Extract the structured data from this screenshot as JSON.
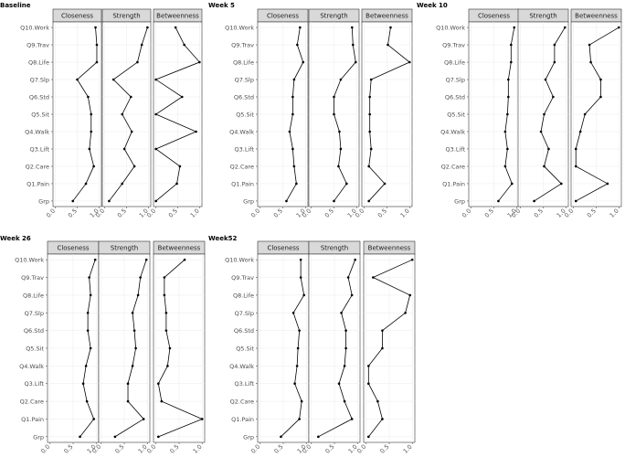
{
  "chart_data": [
    {
      "type": "line",
      "title": "Baseline",
      "categories": [
        "Q10.Work",
        "Q9.Trav",
        "Q8.Life",
        "Q7.Slp",
        "Q6.Std",
        "Q5.Sit",
        "Q4.Walk",
        "Q3.Lift",
        "Q2.Care",
        "Q1.Pain",
        "Grp"
      ],
      "xticks": [
        "0.0",
        "0.5",
        "1.0"
      ],
      "xlim": [
        0,
        1
      ],
      "series": [
        {
          "name": "Closeness",
          "values": [
            0.92,
            0.95,
            0.95,
            0.5,
            0.75,
            0.82,
            0.82,
            0.78,
            0.88,
            0.7,
            0.4
          ]
        },
        {
          "name": "Strength",
          "values": [
            0.98,
            0.85,
            0.75,
            0.2,
            0.6,
            0.4,
            0.62,
            0.45,
            0.68,
            0.4,
            0.1
          ]
        },
        {
          "name": "Betweenness",
          "values": [
            0.45,
            0.65,
            1.0,
            0.0,
            0.6,
            0.0,
            0.92,
            0.0,
            0.55,
            0.48,
            0.0
          ]
        }
      ]
    },
    {
      "type": "line",
      "title": "Week 5",
      "categories": [
        "Q10.Work",
        "Q9.Trav",
        "Q8.Life",
        "Q7.Slp",
        "Q6.Std",
        "Q5.Sit",
        "Q4.Walk",
        "Q3.Lift",
        "Q2.Care",
        "Q1.Pain",
        "Grp"
      ],
      "xticks": [
        "0.0",
        "0.5",
        "1.0"
      ],
      "xlim": [
        0,
        1
      ],
      "series": [
        {
          "name": "Closeness",
          "values": [
            0.88,
            0.82,
            0.95,
            0.75,
            0.72,
            0.72,
            0.65,
            0.72,
            0.75,
            0.8,
            0.58
          ]
        },
        {
          "name": "Strength",
          "values": [
            0.9,
            0.92,
            0.98,
            0.65,
            0.5,
            0.5,
            0.62,
            0.65,
            0.6,
            0.78,
            0.5
          ]
        },
        {
          "name": "Betweenness",
          "values": [
            0.58,
            0.52,
            1.0,
            0.15,
            0.12,
            0.12,
            0.12,
            0.15,
            0.1,
            0.45,
            0.1
          ]
        }
      ]
    },
    {
      "type": "line",
      "title": "Week 10",
      "categories": [
        "Q10.Work",
        "Q9.Trav",
        "Q8.Life",
        "Q7.Slp",
        "Q6.Std",
        "Q5.Sit",
        "Q4.Walk",
        "Q3.Lift",
        "Q2.Care",
        "Q1.Pain",
        "Grp"
      ],
      "xticks": [
        "0.0",
        "0.5",
        "1.0"
      ],
      "xlim": [
        0,
        1
      ],
      "series": [
        {
          "name": "Closeness",
          "values": [
            0.95,
            0.88,
            0.88,
            0.82,
            0.82,
            0.8,
            0.75,
            0.8,
            0.75,
            0.9,
            0.6
          ]
        },
        {
          "name": "Strength",
          "values": [
            0.98,
            0.75,
            0.75,
            0.55,
            0.72,
            0.52,
            0.45,
            0.62,
            0.52,
            0.9,
            0.3
          ]
        },
        {
          "name": "Betweenness",
          "values": [
            1.0,
            0.35,
            0.38,
            0.6,
            0.6,
            0.25,
            0.15,
            0.05,
            0.05,
            0.75,
            0.05
          ]
        }
      ]
    },
    {
      "type": "line",
      "title": "Week 26",
      "categories": [
        "Q10.Work",
        "Q9.Trav",
        "Q8.Life",
        "Q7.Slp",
        "Q6.Std",
        "Q5.Sit",
        "Q4.Walk",
        "Q3.Lift",
        "Q2.Care",
        "Q1.Pain",
        "Grp"
      ],
      "xticks": [
        "0.0",
        "0.5",
        "1.0"
      ],
      "xlim": [
        0,
        1
      ],
      "series": [
        {
          "name": "Closeness",
          "values": [
            0.98,
            0.85,
            0.88,
            0.82,
            0.82,
            0.88,
            0.78,
            0.72,
            0.8,
            0.95,
            0.65
          ]
        },
        {
          "name": "Strength",
          "values": [
            0.98,
            0.85,
            0.8,
            0.68,
            0.72,
            0.75,
            0.68,
            0.58,
            0.58,
            0.92,
            0.3
          ]
        },
        {
          "name": "Betweenness",
          "values": [
            0.62,
            0.18,
            0.18,
            0.22,
            0.22,
            0.3,
            0.25,
            0.05,
            0.12,
            1.0,
            0.05
          ]
        }
      ]
    },
    {
      "type": "line",
      "title": "Week52",
      "categories": [
        "Q10.Work",
        "Q9.Trav",
        "Q8.Life",
        "Q7.Slp",
        "Q6.Std",
        "Q5.Sit",
        "Q4.Walk",
        "Q3.Lift",
        "Q2.Care",
        "Q1.Pain",
        "Grp"
      ],
      "xticks": [
        "0.0",
        "0.5",
        "1.0"
      ],
      "xlim": [
        0,
        1
      ],
      "series": [
        {
          "name": "Closeness",
          "values": [
            0.88,
            0.88,
            0.95,
            0.72,
            0.85,
            0.82,
            0.8,
            0.75,
            0.9,
            0.85,
            0.45
          ]
        },
        {
          "name": "Strength",
          "values": [
            0.95,
            0.8,
            0.88,
            0.65,
            0.75,
            0.75,
            0.72,
            0.6,
            0.72,
            0.88,
            0.15
          ]
        },
        {
          "name": "Betweenness",
          "values": [
            1.0,
            0.15,
            0.95,
            0.85,
            0.35,
            0.35,
            0.05,
            0.05,
            0.25,
            0.35,
            0.05
          ]
        }
      ]
    }
  ]
}
